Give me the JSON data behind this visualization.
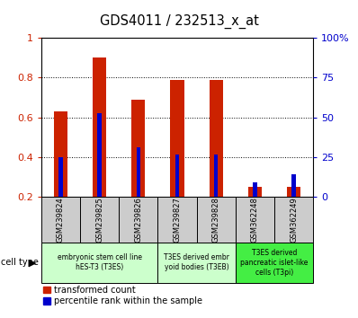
{
  "title": "GDS4011 / 232513_x_at",
  "samples": [
    "GSM239824",
    "GSM239825",
    "GSM239826",
    "GSM239827",
    "GSM239828",
    "GSM362248",
    "GSM362249"
  ],
  "red_values": [
    0.63,
    0.9,
    0.69,
    0.79,
    0.79,
    0.25,
    0.25
  ],
  "blue_values": [
    0.4,
    0.62,
    0.45,
    0.41,
    0.41,
    0.27,
    0.31
  ],
  "red_baseline": 0.2,
  "ylim": [
    0.2,
    1.0
  ],
  "yticks_left": [
    0.2,
    0.4,
    0.6,
    0.8,
    1.0
  ],
  "ytick_labels_left": [
    "0.2",
    "0.4",
    "0.6",
    "0.8",
    "1"
  ],
  "yticks_right_vals": [
    0,
    25,
    50,
    75,
    100
  ],
  "ytick_labels_right": [
    "0",
    "25",
    "50",
    "75",
    "100%"
  ],
  "red_color": "#cc2200",
  "blue_color": "#0000cc",
  "bar_width": 0.35,
  "blue_bar_width": 0.1,
  "group_configs": [
    {
      "start": 0,
      "end": 2,
      "label": "embryonic stem cell line\nhES-T3 (T3ES)",
      "color": "#ccffcc"
    },
    {
      "start": 3,
      "end": 4,
      "label": "T3ES derived embr\nyoid bodies (T3EB)",
      "color": "#ccffcc"
    },
    {
      "start": 5,
      "end": 6,
      "label": "T3ES derived\npancreatic islet-like\ncells (T3pi)",
      "color": "#44ee44"
    }
  ],
  "cell_type_label": "cell type",
  "legend_red": "transformed count",
  "legend_blue": "percentile rank within the sample",
  "tick_color_left": "#cc2200",
  "tick_color_right": "#0000cc",
  "bg_color_samples": "#cccccc",
  "grid_lines": [
    0.4,
    0.6,
    0.8
  ]
}
